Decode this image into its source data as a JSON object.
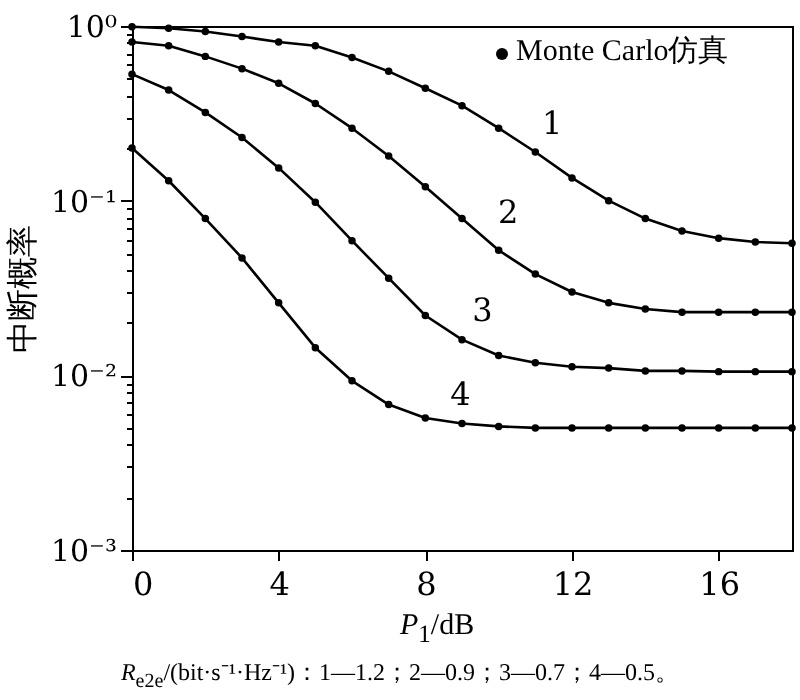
{
  "chart_data": {
    "type": "line",
    "xlabel": "P$_{1}$/dB",
    "ylabel": "中断概率",
    "marker": "circle",
    "line_style": "solid",
    "grid": false,
    "log": "y",
    "xlim": [
      0,
      18
    ],
    "xticks": [
      0,
      4,
      8,
      12,
      16
    ],
    "ylim": [
      0.001,
      1
    ],
    "yticks": [
      {
        "value": 0.001,
        "label": "10⁻³"
      },
      {
        "value": 0.002,
        "label": null
      },
      {
        "value": 0.003,
        "label": null
      },
      {
        "value": 0.004,
        "label": null
      },
      {
        "value": 0.005,
        "label": null
      },
      {
        "value": 0.006,
        "label": null
      },
      {
        "value": 0.007,
        "label": null
      },
      {
        "value": 0.008,
        "label": null
      },
      {
        "value": 0.009,
        "label": null
      },
      {
        "value": 0.01,
        "label": "10⁻²"
      },
      {
        "value": 0.02,
        "label": null
      },
      {
        "value": 0.03,
        "label": null
      },
      {
        "value": 0.04,
        "label": null
      },
      {
        "value": 0.05,
        "label": null
      },
      {
        "value": 0.06,
        "label": null
      },
      {
        "value": 0.07,
        "label": null
      },
      {
        "value": 0.08,
        "label": null
      },
      {
        "value": 0.09,
        "label": null
      },
      {
        "value": 0.1,
        "label": "10⁻¹"
      },
      {
        "value": 0.2,
        "label": null
      },
      {
        "value": 0.3,
        "label": null
      },
      {
        "value": 0.4,
        "label": null
      },
      {
        "value": 0.5,
        "label": null
      },
      {
        "value": 0.6,
        "label": null
      },
      {
        "value": 0.7,
        "label": null
      },
      {
        "value": 0.8,
        "label": null
      },
      {
        "value": 0.9,
        "label": null
      },
      {
        "value": 1,
        "label": "10⁰"
      }
    ],
    "x": [
      0,
      1,
      2,
      3,
      4,
      5,
      6,
      7,
      8,
      9,
      10,
      11,
      12,
      13,
      14,
      15,
      16,
      17,
      18
    ],
    "series": [
      {
        "color": "#000000",
        "values": [
          0.99,
          0.97,
          0.93,
          0.87,
          0.81,
          0.77,
          0.66,
          0.55,
          0.44,
          0.35,
          0.26,
          0.19,
          0.135,
          0.1,
          0.079,
          0.067,
          0.061,
          0.058,
          0.057
        ]
      },
      {
        "color": "#000000",
        "values": [
          0.81,
          0.77,
          0.67,
          0.57,
          0.47,
          0.36,
          0.26,
          0.18,
          0.12,
          0.079,
          0.052,
          0.038,
          0.03,
          0.026,
          0.024,
          0.023,
          0.023,
          0.023,
          0.023
        ]
      },
      {
        "color": "#000000",
        "values": [
          0.53,
          0.43,
          0.32,
          0.23,
          0.154,
          0.098,
          0.059,
          0.036,
          0.022,
          0.016,
          0.013,
          0.0118,
          0.0112,
          0.011,
          0.0106,
          0.0106,
          0.0105,
          0.0105,
          0.0105
        ]
      },
      {
        "color": "#000000",
        "values": [
          0.2,
          0.13,
          0.079,
          0.047,
          0.026,
          0.0144,
          0.0093,
          0.0068,
          0.0057,
          0.0053,
          0.0051,
          0.005,
          0.005,
          0.005,
          0.005,
          0.005,
          0.005,
          0.005,
          0.005
        ]
      }
    ],
    "annotations": [
      {
        "text": "1",
        "x": 10.8,
        "y": 0.2
      },
      {
        "text": "2",
        "x": 9.6,
        "y": 0.062
      },
      {
        "text": "3",
        "x": 8.9,
        "y": 0.017
      },
      {
        "text": "4",
        "x": 8.3,
        "y": 0.0056
      },
      "Monte Carlo仿真",
      "R$_{e2e}$/(bit·s⁻¹·Hz⁻¹)：1—1.2；2—0.9；3—0.7；4—0.5。"
    ]
  }
}
